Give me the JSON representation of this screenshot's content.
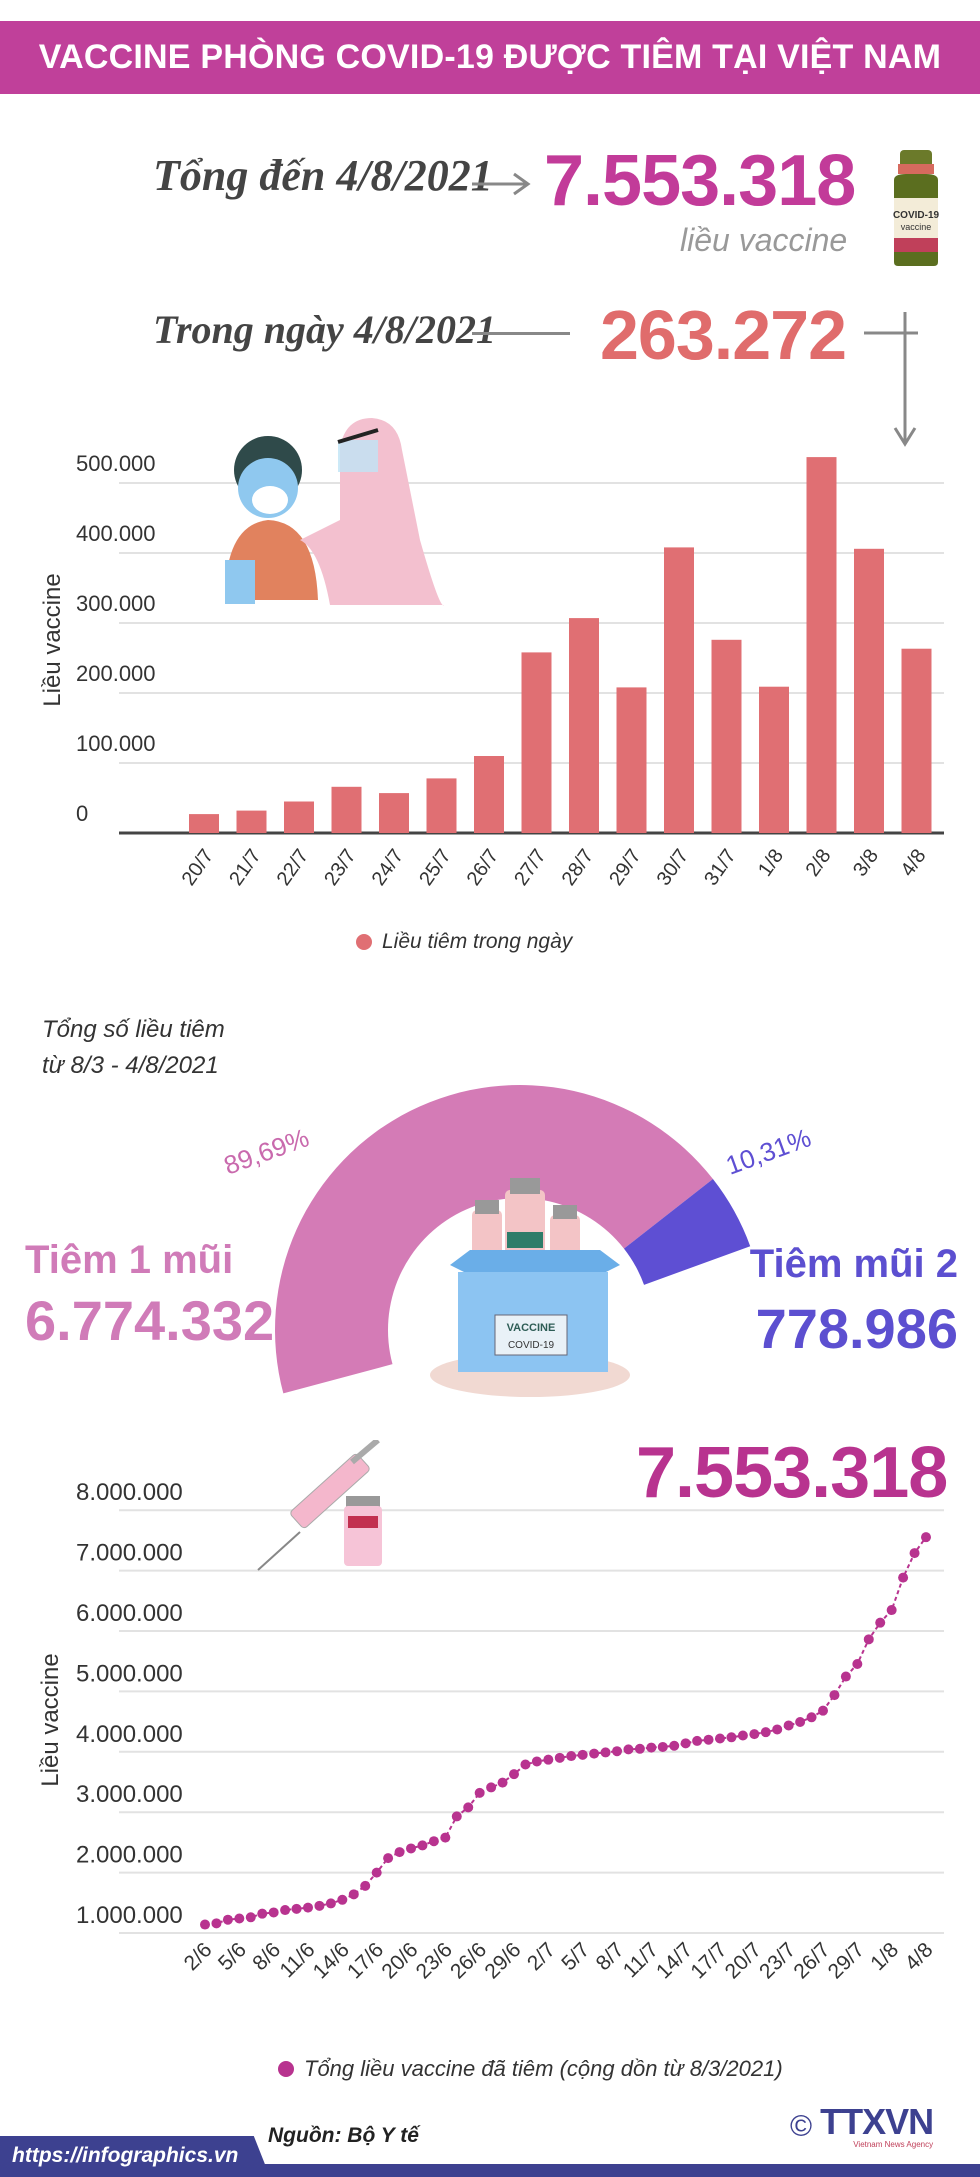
{
  "header": {
    "title": "VACCINE PHÒNG COVID-19 ĐƯỢC TIÊM TẠI VIỆT NAM"
  },
  "summary": {
    "total_label": "Tổng đến 4/8/2021",
    "total_value": "7.553.318",
    "total_unit": "liều vaccine",
    "daily_label": "Trong ngày 4/8/2021",
    "daily_value": "263.272",
    "bottle_text": "COVID-19 vaccine"
  },
  "colors": {
    "brand": "#c0409a",
    "bar": "#e06f73",
    "dose1": "#d47bb6",
    "dose2": "#5e4fd3",
    "line": "#b8338f",
    "footer": "#3d4190"
  },
  "doses": {
    "title_line1": "Tổng số liều tiêm",
    "title_line2": "từ 8/3 - 4/8/2021",
    "dose1_label": "Tiêm 1 mũi",
    "dose1_value": "6.774.332",
    "dose1_percent": "89,69%",
    "dose2_label": "Tiêm mũi 2",
    "dose2_value": "778.986",
    "dose2_percent": "10,31%",
    "box_text1": "VACCINE",
    "box_text2": "COVID-19"
  },
  "line_header": {
    "value": "7.553.318"
  },
  "chart_data": [
    {
      "type": "bar",
      "ylabel": "Liều vaccine",
      "ylim": [
        0,
        550000
      ],
      "yticks": [
        "0",
        "100.000",
        "200.000",
        "300.000",
        "400.000",
        "500.000"
      ],
      "ytick_values": [
        0,
        100000,
        200000,
        300000,
        400000,
        500000
      ],
      "grid": true,
      "legend_position": "bottom",
      "series": [
        {
          "name": "Liều tiêm trong ngày"
        }
      ],
      "categories": [
        "20/7",
        "21/7",
        "22/7",
        "23/7",
        "24/7",
        "25/7",
        "26/7",
        "27/7",
        "28/7",
        "29/7",
        "30/7",
        "31/7",
        "1/8",
        "2/8",
        "3/8",
        "4/8"
      ],
      "values": [
        27000,
        32000,
        45000,
        66000,
        57000,
        78000,
        110000,
        258000,
        307000,
        208000,
        408000,
        276000,
        209000,
        537000,
        406000,
        263272
      ]
    },
    {
      "type": "pie",
      "style": "semi-donut",
      "labels": [
        "Tiêm 1 mũi",
        "Tiêm mũi 2"
      ],
      "values": [
        6774332,
        778986
      ],
      "percents": [
        89.69,
        10.31
      ]
    },
    {
      "type": "line",
      "ylabel": "Liều vaccine",
      "ylim": [
        1000000,
        8000000
      ],
      "yticks": [
        "1.000.000",
        "2.000.000",
        "3.000.000",
        "4.000.000",
        "5.000.000",
        "6.000.000",
        "7.000.000",
        "8.000.000"
      ],
      "ytick_values": [
        1000000,
        2000000,
        3000000,
        4000000,
        5000000,
        6000000,
        7000000,
        8000000
      ],
      "grid": true,
      "legend_position": "bottom",
      "series": [
        {
          "name": "Tổng liều vaccine đã tiêm (cộng dồn từ 8/3/2021)"
        }
      ],
      "xtick_labels": [
        "2/6",
        "5/6",
        "8/6",
        "11/6",
        "14/6",
        "17/6",
        "20/6",
        "23/6",
        "26/6",
        "29/6",
        "2/7",
        "5/7",
        "8/7",
        "11/7",
        "14/7",
        "17/7",
        "20/7",
        "23/7",
        "26/7",
        "29/7",
        "1/8",
        "4/8"
      ],
      "start_date": "2/6",
      "end_date": "4/8",
      "values": [
        1140000,
        1160000,
        1220000,
        1240000,
        1260000,
        1320000,
        1340000,
        1380000,
        1400000,
        1420000,
        1450000,
        1490000,
        1550000,
        1640000,
        1780000,
        2000000,
        2240000,
        2340000,
        2400000,
        2450000,
        2520000,
        2580000,
        2930000,
        3080000,
        3320000,
        3410000,
        3490000,
        3630000,
        3790000,
        3840000,
        3870000,
        3900000,
        3930000,
        3950000,
        3970000,
        3990000,
        4010000,
        4040000,
        4050000,
        4070000,
        4080000,
        4100000,
        4140000,
        4180000,
        4200000,
        4220000,
        4240000,
        4270000,
        4293000,
        4325000,
        4370000,
        4436000,
        4493000,
        4571000,
        4681000,
        4939000,
        5246000,
        5454000,
        5862000,
        6138000,
        6347000,
        6884000,
        7290046,
        7553318
      ]
    }
  ],
  "footer": {
    "source": "Nguồn: Bộ Y tế",
    "url": "https://infographics.vn",
    "logo": "TTXVN",
    "logo_sub": "Vietnam News Agency",
    "copyright": "©"
  }
}
